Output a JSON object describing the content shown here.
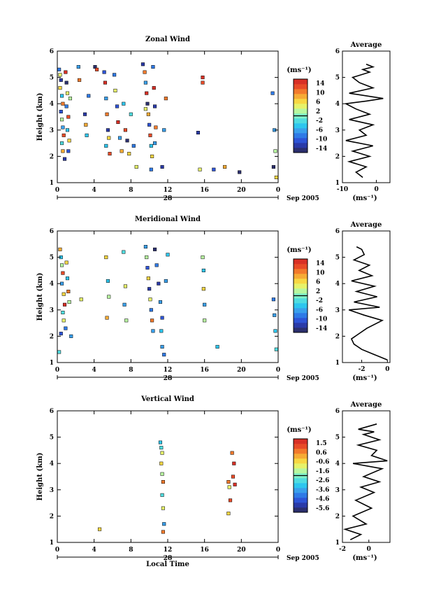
{
  "figure": {
    "xlabel": "Local Time",
    "date_label": "28",
    "month_label": "Sep 2005"
  },
  "chart_data": [
    {
      "type": "heatmap",
      "title": "Zonal Wind",
      "ylabel": "Height (km)",
      "ylim": [
        1,
        6
      ],
      "yticks": [
        "1",
        "2",
        "3",
        "4",
        "5",
        "6"
      ],
      "xlim": [
        0,
        24
      ],
      "xticks": [
        "0",
        "4",
        "8",
        "12",
        "16",
        "20",
        "0"
      ],
      "colorbar": {
        "unit": "(ms⁻¹)",
        "ticks": [
          "14",
          "10",
          "6",
          "2",
          "-2",
          "-6",
          "-10",
          "-14"
        ],
        "min": -16,
        "max": 16,
        "colors": [
          "#2b2f6e",
          "#2a3aa8",
          "#2e54d6",
          "#2f7ae6",
          "#3aa0ec",
          "#2ec6ee",
          "#50dde0",
          "#7ff0c8",
          "#b8f7a0",
          "#e6f26a",
          "#f7d743",
          "#f6ab35",
          "#f27a2c",
          "#e84b28",
          "#d83026"
        ]
      },
      "cells": [
        [
          0.2,
          5.3,
          -8
        ],
        [
          0.3,
          5.1,
          4
        ],
        [
          0.4,
          4.9,
          -12
        ],
        [
          0.3,
          4.6,
          6
        ],
        [
          0.5,
          4.3,
          -4
        ],
        [
          0.6,
          4.0,
          10
        ],
        [
          0.4,
          3.7,
          -10
        ],
        [
          0.5,
          3.4,
          2
        ],
        [
          0.6,
          3.1,
          -6
        ],
        [
          0.7,
          2.8,
          12
        ],
        [
          0.5,
          2.5,
          -2
        ],
        [
          0.6,
          2.2,
          8
        ],
        [
          0.8,
          1.9,
          -12
        ],
        [
          0.9,
          5.2,
          14
        ],
        [
          1.0,
          4.8,
          -14
        ],
        [
          1.1,
          4.4,
          5
        ],
        [
          1.0,
          3.9,
          -8
        ],
        [
          1.2,
          3.5,
          12
        ],
        [
          1.1,
          3.0,
          -4
        ],
        [
          1.3,
          2.6,
          6
        ],
        [
          1.2,
          2.2,
          -10
        ],
        [
          1.4,
          4.2,
          3
        ],
        [
          2.3,
          5.4,
          -6
        ],
        [
          2.4,
          4.9,
          10
        ],
        [
          3.0,
          3.6,
          -12
        ],
        [
          3.1,
          3.2,
          8
        ],
        [
          3.2,
          2.8,
          -4
        ],
        [
          3.4,
          4.3,
          -8
        ],
        [
          4.1,
          5.4,
          -14
        ],
        [
          4.3,
          5.3,
          12
        ],
        [
          5.1,
          5.2,
          -10
        ],
        [
          5.2,
          4.8,
          14
        ],
        [
          5.3,
          4.2,
          -6
        ],
        [
          5.4,
          3.6,
          10
        ],
        [
          5.5,
          3.0,
          -12
        ],
        [
          5.6,
          2.7,
          6
        ],
        [
          5.3,
          2.4,
          -4
        ],
        [
          5.7,
          2.1,
          12
        ],
        [
          6.2,
          5.1,
          -8
        ],
        [
          6.3,
          4.5,
          4
        ],
        [
          6.5,
          3.9,
          -10
        ],
        [
          6.6,
          3.3,
          14
        ],
        [
          6.8,
          2.7,
          -6
        ],
        [
          7.0,
          2.2,
          8
        ],
        [
          7.2,
          4.0,
          -4
        ],
        [
          7.4,
          3.0,
          12
        ],
        [
          7.6,
          2.6,
          -14
        ],
        [
          7.8,
          2.1,
          6
        ],
        [
          8.0,
          3.6,
          -2
        ],
        [
          8.3,
          2.4,
          -8
        ],
        [
          8.6,
          1.6,
          4
        ],
        [
          9.3,
          5.5,
          -12
        ],
        [
          9.5,
          5.2,
          10
        ],
        [
          9.6,
          4.8,
          -6
        ],
        [
          9.7,
          4.4,
          14
        ],
        [
          9.8,
          4.0,
          -14
        ],
        [
          9.9,
          3.6,
          8
        ],
        [
          10.0,
          3.2,
          -10
        ],
        [
          10.1,
          2.8,
          12
        ],
        [
          10.2,
          2.4,
          -4
        ],
        [
          10.3,
          2.0,
          6
        ],
        [
          10.4,
          5.4,
          -8
        ],
        [
          10.5,
          4.6,
          14
        ],
        [
          10.6,
          3.9,
          -12
        ],
        [
          10.7,
          3.1,
          10
        ],
        [
          10.6,
          2.5,
          -6
        ],
        [
          9.6,
          3.8,
          4
        ],
        [
          10.2,
          1.5,
          -8
        ],
        [
          11.4,
          1.6,
          -12
        ],
        [
          11.6,
          3.0,
          -6
        ],
        [
          11.8,
          4.2,
          10
        ],
        [
          15.8,
          5.0,
          14
        ],
        [
          15.8,
          4.8,
          12
        ],
        [
          15.5,
          1.5,
          4
        ],
        [
          17.0,
          1.5,
          -10
        ],
        [
          18.2,
          1.6,
          8
        ],
        [
          19.8,
          1.4,
          -14
        ],
        [
          15.3,
          2.9,
          -12
        ],
        [
          23.4,
          4.4,
          -8
        ],
        [
          23.5,
          1.6,
          -14
        ],
        [
          23.6,
          3.0,
          -6
        ],
        [
          23.7,
          2.2,
          2
        ],
        [
          23.8,
          1.2,
          6
        ]
      ],
      "profile": {
        "title": "Average",
        "xlabel": "(ms⁻¹)",
        "xlim": [
          -10,
          4
        ],
        "xticks": [
          "-10",
          "0"
        ],
        "ylim": [
          1,
          6
        ],
        "yticks": [
          "1",
          "2",
          "3",
          "4",
          "5",
          "6"
        ],
        "x": [
          -4,
          -6,
          -3,
          -8,
          -2,
          -7,
          -1,
          -9,
          -3,
          -5,
          -1,
          -8,
          -2,
          -6,
          -9,
          -3,
          2,
          -8,
          -1,
          -5,
          -7,
          -2,
          -4,
          -1,
          -3
        ],
        "y": [
          1.2,
          1.4,
          1.6,
          1.8,
          2.0,
          2.2,
          2.4,
          2.6,
          2.8,
          3.0,
          3.2,
          3.4,
          3.6,
          3.8,
          4.0,
          4.1,
          4.2,
          4.4,
          4.6,
          4.8,
          5.0,
          5.2,
          5.3,
          5.4,
          5.5
        ]
      }
    },
    {
      "type": "heatmap",
      "title": "Meridional Wind",
      "ylabel": "Height (km)",
      "ylim": [
        1,
        6
      ],
      "yticks": [
        "1",
        "2",
        "3",
        "4",
        "5",
        "6"
      ],
      "xlim": [
        0,
        24
      ],
      "xticks": [
        "0",
        "4",
        "8",
        "12",
        "16",
        "20",
        "0"
      ],
      "colorbar": {
        "unit": "(ms⁻¹)",
        "ticks": [
          "14",
          "10",
          "6",
          "2",
          "-2",
          "-6",
          "-10",
          "-14"
        ],
        "min": -16,
        "max": 16,
        "colors": [
          "#2b2f6e",
          "#2a3aa8",
          "#2e54d6",
          "#2f7ae6",
          "#3aa0ec",
          "#2ec6ee",
          "#50dde0",
          "#7ff0c8",
          "#b8f7a0",
          "#e6f26a",
          "#f7d743",
          "#f6ab35",
          "#f27a2c",
          "#e84b28",
          "#d83026"
        ]
      },
      "cells": [
        [
          0.3,
          5.3,
          8
        ],
        [
          0.4,
          5.0,
          -4
        ],
        [
          0.5,
          4.7,
          2
        ],
        [
          0.6,
          4.4,
          12
        ],
        [
          0.5,
          4.0,
          -6
        ],
        [
          0.7,
          3.6,
          6
        ],
        [
          0.8,
          3.2,
          14
        ],
        [
          0.6,
          2.9,
          -2
        ],
        [
          0.7,
          2.6,
          4
        ],
        [
          0.9,
          2.3,
          -8
        ],
        [
          1.0,
          4.8,
          6
        ],
        [
          1.1,
          4.2,
          -4
        ],
        [
          1.2,
          3.7,
          10
        ],
        [
          1.3,
          3.3,
          2
        ],
        [
          0.4,
          2.1,
          -10
        ],
        [
          1.5,
          2.0,
          -6
        ],
        [
          0.2,
          1.4,
          -2
        ],
        [
          2.6,
          3.4,
          4
        ],
        [
          5.3,
          5.0,
          6
        ],
        [
          5.5,
          4.1,
          -4
        ],
        [
          5.6,
          3.5,
          2
        ],
        [
          5.4,
          2.7,
          8
        ],
        [
          7.2,
          5.2,
          -2
        ],
        [
          7.4,
          3.9,
          4
        ],
        [
          7.3,
          3.2,
          -6
        ],
        [
          7.5,
          2.6,
          2
        ],
        [
          9.6,
          5.4,
          -6
        ],
        [
          9.7,
          5.0,
          2
        ],
        [
          9.8,
          4.6,
          -10
        ],
        [
          9.9,
          4.2,
          6
        ],
        [
          10.0,
          3.8,
          -12
        ],
        [
          10.1,
          3.4,
          4
        ],
        [
          10.2,
          3.0,
          -8
        ],
        [
          10.3,
          2.6,
          10
        ],
        [
          10.4,
          2.2,
          -6
        ],
        [
          10.6,
          5.3,
          -14
        ],
        [
          10.8,
          4.7,
          -8
        ],
        [
          11.0,
          4.0,
          -12
        ],
        [
          11.2,
          3.3,
          -6
        ],
        [
          11.4,
          2.7,
          -10
        ],
        [
          11.3,
          2.2,
          -4
        ],
        [
          11.4,
          1.6,
          -6
        ],
        [
          11.6,
          1.3,
          -8
        ],
        [
          11.8,
          4.1,
          -6
        ],
        [
          12.0,
          5.1,
          -4
        ],
        [
          15.8,
          5.0,
          2
        ],
        [
          15.9,
          4.5,
          -4
        ],
        [
          15.9,
          3.8,
          6
        ],
        [
          16.0,
          3.2,
          -6
        ],
        [
          16.0,
          2.6,
          2
        ],
        [
          17.4,
          1.6,
          -4
        ],
        [
          23.5,
          3.4,
          -8
        ],
        [
          23.6,
          2.8,
          -6
        ],
        [
          23.7,
          2.2,
          -4
        ],
        [
          23.8,
          1.5,
          -2
        ]
      ],
      "profile": {
        "title": "Average",
        "xlabel": "(ms⁻¹)",
        "xlim": [
          -3.5,
          0.2
        ],
        "xticks": [
          "-2",
          "0"
        ],
        "ylim": [
          1,
          6
        ],
        "yticks": [
          "1",
          "2",
          "3",
          "4",
          "5",
          "6"
        ],
        "x": [
          0.0,
          -1.0,
          -2.0,
          -2.6,
          -2.8,
          -2.2,
          -1.6,
          -0.4,
          -1.8,
          -3.0,
          -0.6,
          -2.6,
          -0.8,
          -2.4,
          -1.0,
          -2.8,
          -1.2,
          -2.2,
          -1.4,
          -2.6,
          -1.8,
          -2.0,
          -2.4
        ],
        "y": [
          1.1,
          1.3,
          1.5,
          1.7,
          1.9,
          2.1,
          2.3,
          2.6,
          2.8,
          3.0,
          3.1,
          3.3,
          3.5,
          3.7,
          3.9,
          4.1,
          4.3,
          4.5,
          4.7,
          4.9,
          5.1,
          5.3,
          5.4
        ]
      }
    },
    {
      "type": "heatmap",
      "title": "Vertical Wind",
      "ylabel": "Height (km)",
      "ylim": [
        1,
        6
      ],
      "yticks": [
        "1",
        "2",
        "3",
        "4",
        "5",
        "6"
      ],
      "xlim": [
        0,
        24
      ],
      "xticks": [
        "0",
        "4",
        "8",
        "12",
        "16",
        "20",
        "0"
      ],
      "colorbar": {
        "unit": "(ms⁻¹)",
        "ticks": [
          "1.5",
          "0.6",
          "-0.6",
          "-1.6",
          "-2.6",
          "-3.6",
          "-4.6",
          "-5.6"
        ],
        "min": -6.1,
        "max": 2.0,
        "colors": [
          "#2b2f6e",
          "#2a3aa8",
          "#2e54d6",
          "#2f7ae6",
          "#3aa0ec",
          "#2ec6ee",
          "#50dde0",
          "#7ff0c8",
          "#b8f7a0",
          "#e6f26a",
          "#f7d743",
          "#f6ab35",
          "#f27a2c",
          "#e84b28",
          "#d83026"
        ]
      },
      "cells": [
        [
          11.2,
          4.8,
          -3.2
        ],
        [
          11.3,
          4.6,
          -2.4
        ],
        [
          11.4,
          4.4,
          -1.0
        ],
        [
          11.3,
          4.0,
          -0.2
        ],
        [
          11.4,
          3.6,
          -1.6
        ],
        [
          11.5,
          3.3,
          0.4
        ],
        [
          11.4,
          2.8,
          -2.8
        ],
        [
          11.5,
          2.3,
          -0.8
        ],
        [
          11.6,
          1.7,
          -3.6
        ],
        [
          11.5,
          1.4,
          0.9
        ],
        [
          4.6,
          1.5,
          -0.2
        ],
        [
          18.6,
          3.3,
          0.8
        ],
        [
          18.7,
          3.1,
          -1.2
        ],
        [
          18.8,
          2.6,
          1.2
        ],
        [
          18.6,
          2.1,
          -0.4
        ],
        [
          19.0,
          4.4,
          0.6
        ],
        [
          19.2,
          4.0,
          1.5
        ],
        [
          19.1,
          3.5,
          1.0
        ],
        [
          19.3,
          3.2,
          1.6
        ]
      ],
      "profile": {
        "title": "Average",
        "xlabel": "(ms⁻¹)",
        "xlim": [
          -2,
          1.6
        ],
        "xticks": [
          "-2",
          "0"
        ],
        "ylim": [
          1,
          6
        ],
        "yticks": [
          "1",
          "2",
          "3",
          "4",
          "5",
          "6"
        ],
        "x": [
          -1.4,
          -0.6,
          -1.8,
          -0.2,
          -1.2,
          0.2,
          -1.0,
          0.4,
          -0.6,
          0.8,
          -0.4,
          1.0,
          -1.2,
          1.4,
          0.2,
          0.6,
          -0.8,
          0.8,
          -0.4,
          0.4,
          -0.8,
          0.6
        ],
        "y": [
          1.1,
          1.3,
          1.5,
          1.7,
          2.0,
          2.3,
          2.6,
          2.9,
          3.1,
          3.3,
          3.5,
          3.8,
          4.0,
          4.1,
          4.3,
          4.5,
          4.7,
          4.9,
          5.1,
          5.2,
          5.3,
          5.5
        ]
      }
    }
  ]
}
